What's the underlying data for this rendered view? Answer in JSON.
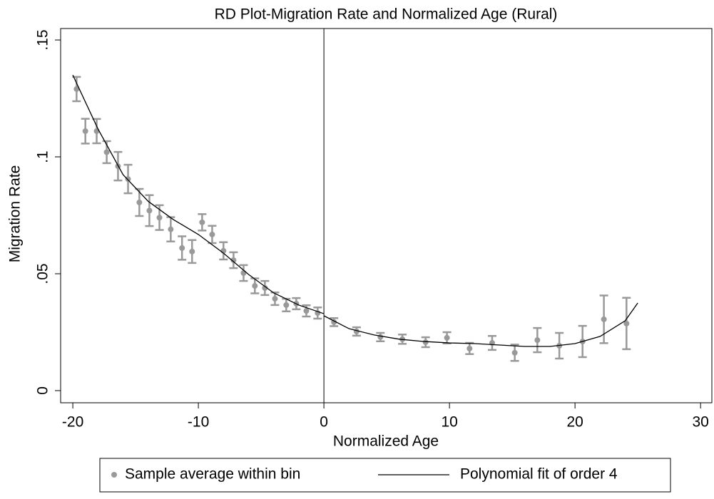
{
  "chart_data": {
    "type": "scatter",
    "title": "RD Plot-Migration Rate and Normalized Age (Rural)",
    "x_label": "Normalized Age",
    "y_label": "Migration Rate",
    "xlim": [
      -20.97,
      30.9
    ],
    "ylim": [
      -0.0052,
      0.1549
    ],
    "xticks": [
      -20,
      -10,
      0,
      10,
      20,
      30
    ],
    "yticks": [
      0,
      {
        "value": 0.05,
        "label": ".05"
      },
      {
        "value": 0.1,
        "label": ".1"
      },
      {
        "value": 0.15,
        "label": ".15"
      }
    ],
    "vline": 0,
    "legend": "bottom",
    "series": [
      {
        "name": "Sample average within bin",
        "type": "scatter",
        "color": "#999999",
        "x": [
          -19.7,
          -19.0,
          -18.1,
          -17.3,
          -16.4,
          -15.6,
          -14.7,
          -13.9,
          -13.1,
          -12.2,
          -11.3,
          -10.5,
          -9.7,
          -8.9,
          -8.0,
          -7.2,
          -6.4,
          -5.5,
          -4.7,
          -3.9,
          -3.0,
          -2.2,
          -1.4,
          -0.5,
          0.8,
          2.6,
          4.5,
          6.25,
          8.1,
          9.8,
          11.6,
          13.4,
          15.2,
          17.0,
          18.75,
          20.6,
          22.3,
          24.1
        ],
        "values": [
          0.129,
          0.111,
          0.111,
          0.102,
          0.096,
          0.0905,
          0.0805,
          0.077,
          0.074,
          0.069,
          0.061,
          0.0595,
          0.072,
          0.0668,
          0.0598,
          0.0558,
          0.0503,
          0.0448,
          0.0439,
          0.0393,
          0.0366,
          0.0372,
          0.0341,
          0.0332,
          0.0293,
          0.0253,
          0.0229,
          0.022,
          0.0207,
          0.0226,
          0.018,
          0.0204,
          0.0162,
          0.0216,
          0.0192,
          0.021,
          0.0305,
          0.0287
        ],
        "errors": [
          0.0052,
          0.0053,
          0.0052,
          0.0047,
          0.0061,
          0.0061,
          0.0058,
          0.0066,
          0.0053,
          0.0052,
          0.005,
          0.0049,
          0.0035,
          0.0037,
          0.0037,
          0.0034,
          0.0034,
          0.0032,
          0.003,
          0.0027,
          0.0027,
          0.0024,
          0.0024,
          0.0024,
          0.0017,
          0.0018,
          0.0018,
          0.002,
          0.0021,
          0.0024,
          0.0024,
          0.003,
          0.0035,
          0.0052,
          0.0055,
          0.0067,
          0.0102,
          0.011
        ]
      },
      {
        "name": "Polynomial fit of order 4",
        "type": "line",
        "color": "#000000",
        "x": [
          -20,
          -18,
          -16,
          -14,
          -12,
          -10,
          -8,
          -6,
          -4,
          -2,
          0,
          null,
          0,
          2,
          4,
          6,
          8,
          10,
          12,
          14,
          16,
          18,
          20,
          22,
          24,
          25
        ],
        "values": [
          0.135,
          0.112,
          0.0924,
          0.081,
          0.0732,
          0.0668,
          0.0588,
          0.0497,
          0.0418,
          0.0366,
          0.0329,
          null,
          0.032,
          0.0265,
          0.0238,
          0.022,
          0.021,
          0.0204,
          0.0201,
          0.0195,
          0.0189,
          0.0189,
          0.0201,
          0.0232,
          0.0299,
          0.0375
        ]
      }
    ]
  }
}
